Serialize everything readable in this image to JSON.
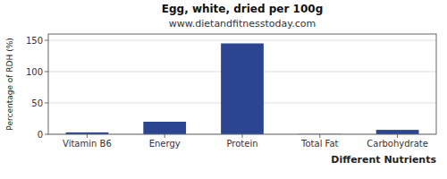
{
  "chart_data": {
    "type": "bar",
    "title": "Egg, white, dried per 100g",
    "subtitle": "www.dietandfitnesstoday.com",
    "xlabel": "Different Nutrients",
    "ylabel": "Percentage of RDH (%)",
    "categories": [
      "Vitamin B6",
      "Energy",
      "Protein",
      "Total Fat",
      "Carbohydrate"
    ],
    "values": [
      3.0,
      20.0,
      145.0,
      0.4,
      7.0
    ],
    "color": "#2b4590",
    "ylim": [
      0,
      160
    ],
    "yticks": [
      0,
      50,
      100,
      150
    ],
    "grid": true
  }
}
